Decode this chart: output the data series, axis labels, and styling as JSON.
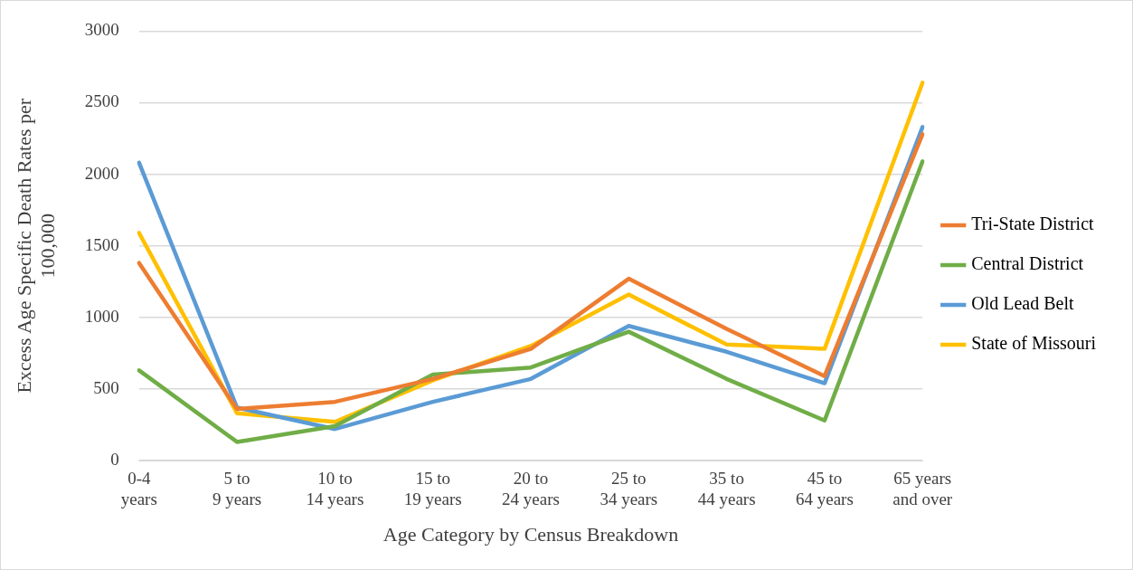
{
  "chart_data": {
    "type": "line",
    "xlabel": "Age Category by Census Breakdown",
    "ylabel": "Excess Age Specific Death Rates per 100,000",
    "categories": [
      "0-4 years",
      "5 to 9 years",
      "10 to 14 years",
      "15 to 19 years",
      "20 to 24 years",
      "25 to 34 years",
      "35 to 44 years",
      "45 to 64 years",
      "65 years and over"
    ],
    "series": [
      {
        "name": "Tri-State District",
        "color": "#ed7d31",
        "values": [
          1380,
          360,
          410,
          570,
          780,
          1270,
          920,
          590,
          2280
        ]
      },
      {
        "name": "Central District",
        "color": "#70ad47",
        "values": [
          630,
          130,
          240,
          600,
          650,
          900,
          570,
          280,
          2090
        ]
      },
      {
        "name": "Old Lead Belt",
        "color": "#5b9bd5",
        "values": [
          2080,
          370,
          220,
          410,
          570,
          940,
          760,
          540,
          2330
        ]
      },
      {
        "name": "State of Missouri",
        "color": "#ffc000",
        "values": [
          1590,
          330,
          270,
          560,
          800,
          1160,
          810,
          780,
          2640
        ]
      }
    ],
    "ylim": [
      0,
      3000
    ],
    "yticks": [
      0,
      500,
      1000,
      1500,
      2000,
      2500,
      3000
    ],
    "grid": "y",
    "legend": "right",
    "marker": "none",
    "line_style": "solid"
  }
}
